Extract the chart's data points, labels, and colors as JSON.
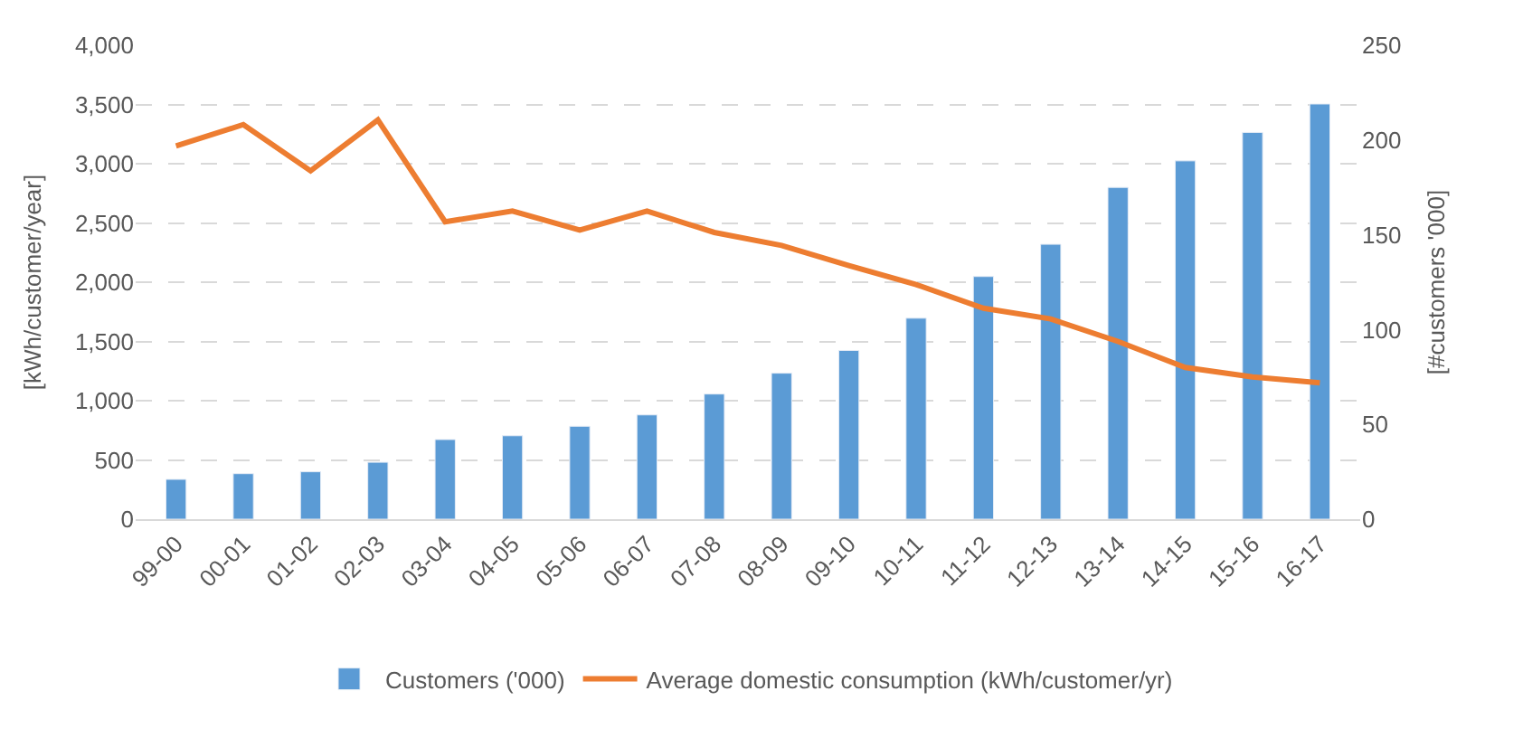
{
  "chart_data": {
    "type": "bar",
    "ylabel": "[kWh/customer/year]",
    "y2label": "[#customers '000]",
    "categories": [
      "99-00",
      "00-01",
      "01-02",
      "02-03",
      "03-04",
      "04-05",
      "05-06",
      "06-07",
      "07-08",
      "08-09",
      "09-10",
      "10-11",
      "11-12",
      "12-13",
      "13-14",
      "14-15",
      "15-16",
      "16-17"
    ],
    "series": [
      {
        "name": "Customers ('000)",
        "axis": "y2",
        "color": "#5b9bd5",
        "values": [
          21,
          24,
          25,
          30,
          42,
          44,
          49,
          55,
          66,
          77,
          89,
          106,
          128,
          145,
          175,
          189,
          204,
          219
        ]
      },
      {
        "name": "Average domestic consumption (kWh/customer/yr)",
        "type": "line",
        "color": "#ed7d31",
        "values": [
          3150,
          3330,
          2940,
          3370,
          2510,
          2600,
          2440,
          2600,
          2420,
          2310,
          2140,
          1980,
          1780,
          1690,
          1500,
          1280,
          1200,
          1150
        ]
      }
    ],
    "ylim": [
      0,
      4000
    ],
    "yticks": [
      {
        "value": 0,
        "label": "0"
      },
      {
        "value": 500,
        "label": "500"
      },
      {
        "value": 1000,
        "label": "1,000"
      },
      {
        "value": 1500,
        "label": "1,500"
      },
      {
        "value": 2000,
        "label": "2,000"
      },
      {
        "value": 2500,
        "label": "2,500"
      },
      {
        "value": 3000,
        "label": "3,000"
      },
      {
        "value": 3500,
        "label": "3,500"
      },
      {
        "value": 4000,
        "label": "4,000"
      }
    ],
    "y2lim": [
      0,
      250
    ],
    "y2ticks": [
      0,
      50,
      100,
      150,
      200,
      250
    ],
    "grid": "y",
    "legend": "bottom",
    "marker": "none",
    "line_style": "solid"
  }
}
